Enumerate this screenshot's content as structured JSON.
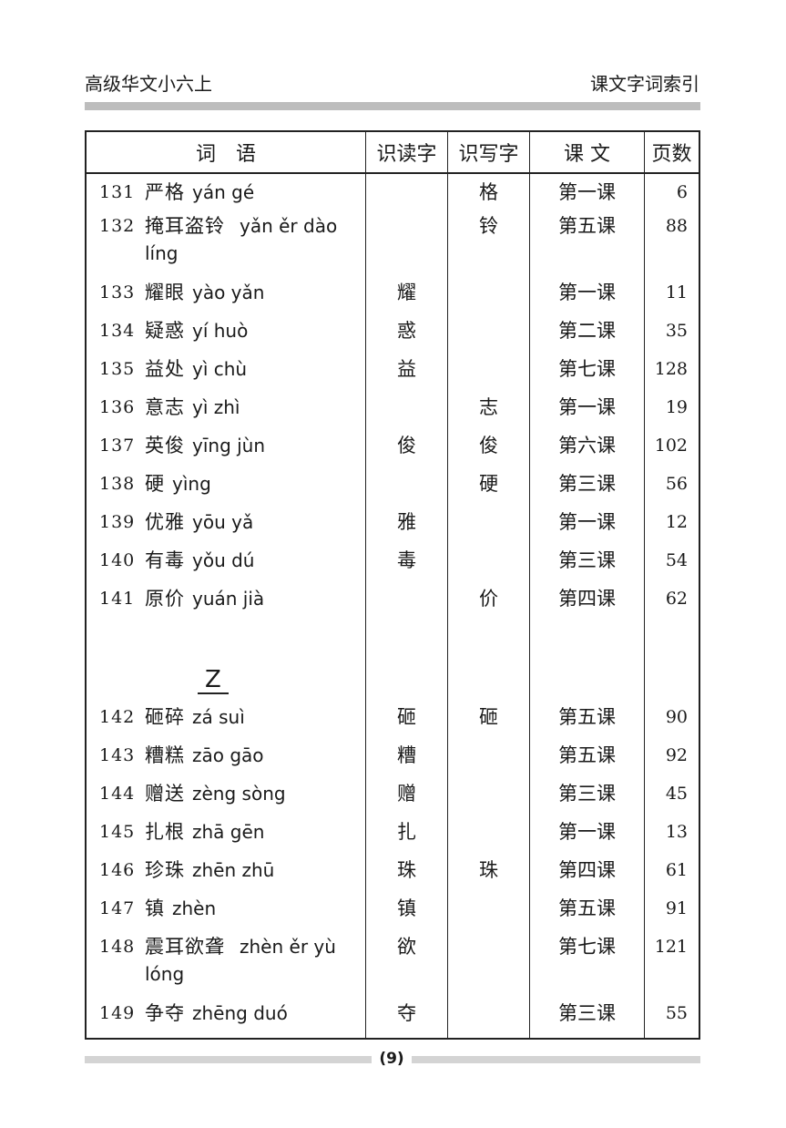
{
  "header": {
    "book_title": "高级华文小六上",
    "section_title": "课文字词索引"
  },
  "table": {
    "columns": [
      "词　语",
      "识读字",
      "识写字",
      "课 文",
      "页数"
    ],
    "rows_y": [
      {
        "no": "131",
        "word": "严格",
        "pinyin": "yán gé",
        "read": "",
        "write": "格",
        "lesson": "第一课",
        "page": "6"
      },
      {
        "no": "132",
        "word": "掩耳盗铃",
        "pinyin": "yǎn ěr dào líng",
        "read": "",
        "write": "铃",
        "lesson": "第五课",
        "page": "88"
      },
      {
        "no": "133",
        "word": "耀眼",
        "pinyin": "yào yǎn",
        "read": "耀",
        "write": "",
        "lesson": "第一课",
        "page": "11"
      },
      {
        "no": "134",
        "word": "疑惑",
        "pinyin": "yí huò",
        "read": "惑",
        "write": "",
        "lesson": "第二课",
        "page": "35"
      },
      {
        "no": "135",
        "word": "益处",
        "pinyin": "yì chù",
        "read": "益",
        "write": "",
        "lesson": "第七课",
        "page": "128"
      },
      {
        "no": "136",
        "word": "意志",
        "pinyin": "yì zhì",
        "read": "",
        "write": "志",
        "lesson": "第一课",
        "page": "19"
      },
      {
        "no": "137",
        "word": "英俊",
        "pinyin": "yīng jùn",
        "read": "俊",
        "write": "俊",
        "lesson": "第六课",
        "page": "102"
      },
      {
        "no": "138",
        "word": "硬",
        "pinyin": "yìng",
        "read": "",
        "write": "硬",
        "lesson": "第三课",
        "page": "56"
      },
      {
        "no": "139",
        "word": "优雅",
        "pinyin": "yōu yǎ",
        "read": "雅",
        "write": "",
        "lesson": "第一课",
        "page": "12"
      },
      {
        "no": "140",
        "word": "有毒",
        "pinyin": "yǒu dú",
        "read": "毒",
        "write": "",
        "lesson": "第三课",
        "page": "54"
      },
      {
        "no": "141",
        "word": "原价",
        "pinyin": "yuán jià",
        "read": "",
        "write": "价",
        "lesson": "第四课",
        "page": "62"
      }
    ],
    "section_letter": "Z",
    "rows_z": [
      {
        "no": "142",
        "word": "砸碎",
        "pinyin": "zá suì",
        "read": "砸",
        "write": "砸",
        "lesson": "第五课",
        "page": "90"
      },
      {
        "no": "143",
        "word": "糟糕",
        "pinyin": "zāo gāo",
        "read": "糟",
        "write": "",
        "lesson": "第五课",
        "page": "92"
      },
      {
        "no": "144",
        "word": "赠送",
        "pinyin": "zèng sòng",
        "read": "赠",
        "write": "",
        "lesson": "第三课",
        "page": "45"
      },
      {
        "no": "145",
        "word": "扎根",
        "pinyin": "zhā gēn",
        "read": "扎",
        "write": "",
        "lesson": "第一课",
        "page": "13"
      },
      {
        "no": "146",
        "word": "珍珠",
        "pinyin": "zhēn zhū",
        "read": "珠",
        "write": "珠",
        "lesson": "第四课",
        "page": "61"
      },
      {
        "no": "147",
        "word": "镇",
        "pinyin": "zhèn",
        "read": "镇",
        "write": "",
        "lesson": "第五课",
        "page": "91"
      },
      {
        "no": "148",
        "word": "震耳欲聋",
        "pinyin": "zhèn ěr yù lóng",
        "read": "欲",
        "write": "",
        "lesson": "第七课",
        "page": "121"
      },
      {
        "no": "149",
        "word": "争夺",
        "pinyin": "zhēng duó",
        "read": "夺",
        "write": "",
        "lesson": "第三课",
        "page": "55"
      }
    ]
  },
  "footer": {
    "page_number": "(9)"
  }
}
